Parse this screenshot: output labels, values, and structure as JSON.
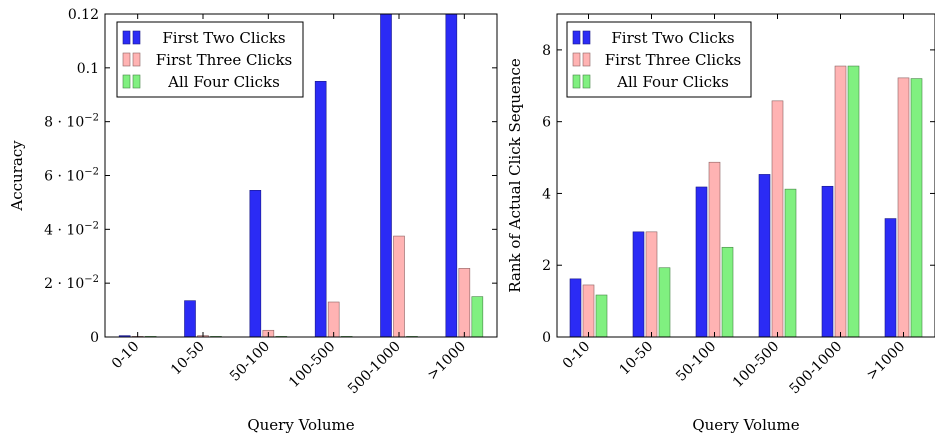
{
  "chart_data": [
    {
      "type": "bar",
      "title": "",
      "xlabel": "Query Volume",
      "ylabel": "Accuracy",
      "categories": [
        "0-10",
        "10-50",
        "50-100",
        "100-500",
        "500-1000",
        ">1000"
      ],
      "ylim": [
        0,
        0.12
      ],
      "yticks": [
        {
          "value": 0,
          "label": "0"
        },
        {
          "value": 0.02,
          "label": "2 · 10",
          "exp": "−2"
        },
        {
          "value": 0.04,
          "label": "4 · 10",
          "exp": "−2"
        },
        {
          "value": 0.06,
          "label": "6 · 10",
          "exp": "−2"
        },
        {
          "value": 0.08,
          "label": "8 · 10",
          "exp": "−2"
        },
        {
          "value": 0.1,
          "label": "0.1"
        },
        {
          "value": 0.12,
          "label": "0.12"
        }
      ],
      "series": [
        {
          "name": "First Two Clicks",
          "color": "#2b2bf5",
          "values": [
            0.0005,
            0.0135,
            0.0545,
            0.095,
            0.125,
            0.125
          ]
        },
        {
          "name": "First Three Clicks",
          "color": "#ffb3b3",
          "values": [
            0.0002,
            0.0005,
            0.0025,
            0.013,
            0.0375,
            0.0255
          ]
        },
        {
          "name": "All Four Clicks",
          "color": "#80f080",
          "values": [
            0.0001,
            0.0002,
            0.0002,
            0.0002,
            0.0002,
            0.015
          ]
        }
      ],
      "legend": "top-left",
      "grid": false
    },
    {
      "type": "bar",
      "title": "",
      "xlabel": "Query Volume",
      "ylabel": "Rank of Actual Click Sequence",
      "categories": [
        "0-10",
        "10-50",
        "50-100",
        "100-500",
        "500-1000",
        ">1000"
      ],
      "ylim": [
        0,
        9
      ],
      "yticks": [
        {
          "value": 0,
          "label": "0"
        },
        {
          "value": 2,
          "label": "2"
        },
        {
          "value": 4,
          "label": "4"
        },
        {
          "value": 6,
          "label": "6"
        },
        {
          "value": 8,
          "label": "8"
        }
      ],
      "series": [
        {
          "name": "First Two Clicks",
          "color": "#2b2bf5",
          "values": [
            1.62,
            2.93,
            4.18,
            4.53,
            4.2,
            3.3
          ]
        },
        {
          "name": "First Three Clicks",
          "color": "#ffb3b3",
          "values": [
            1.45,
            2.93,
            4.87,
            6.58,
            7.55,
            7.22
          ]
        },
        {
          "name": "All Four Clicks",
          "color": "#80f080",
          "values": [
            1.17,
            1.93,
            2.5,
            4.12,
            7.55,
            7.2
          ]
        }
      ],
      "legend": "top-left",
      "grid": false
    }
  ]
}
